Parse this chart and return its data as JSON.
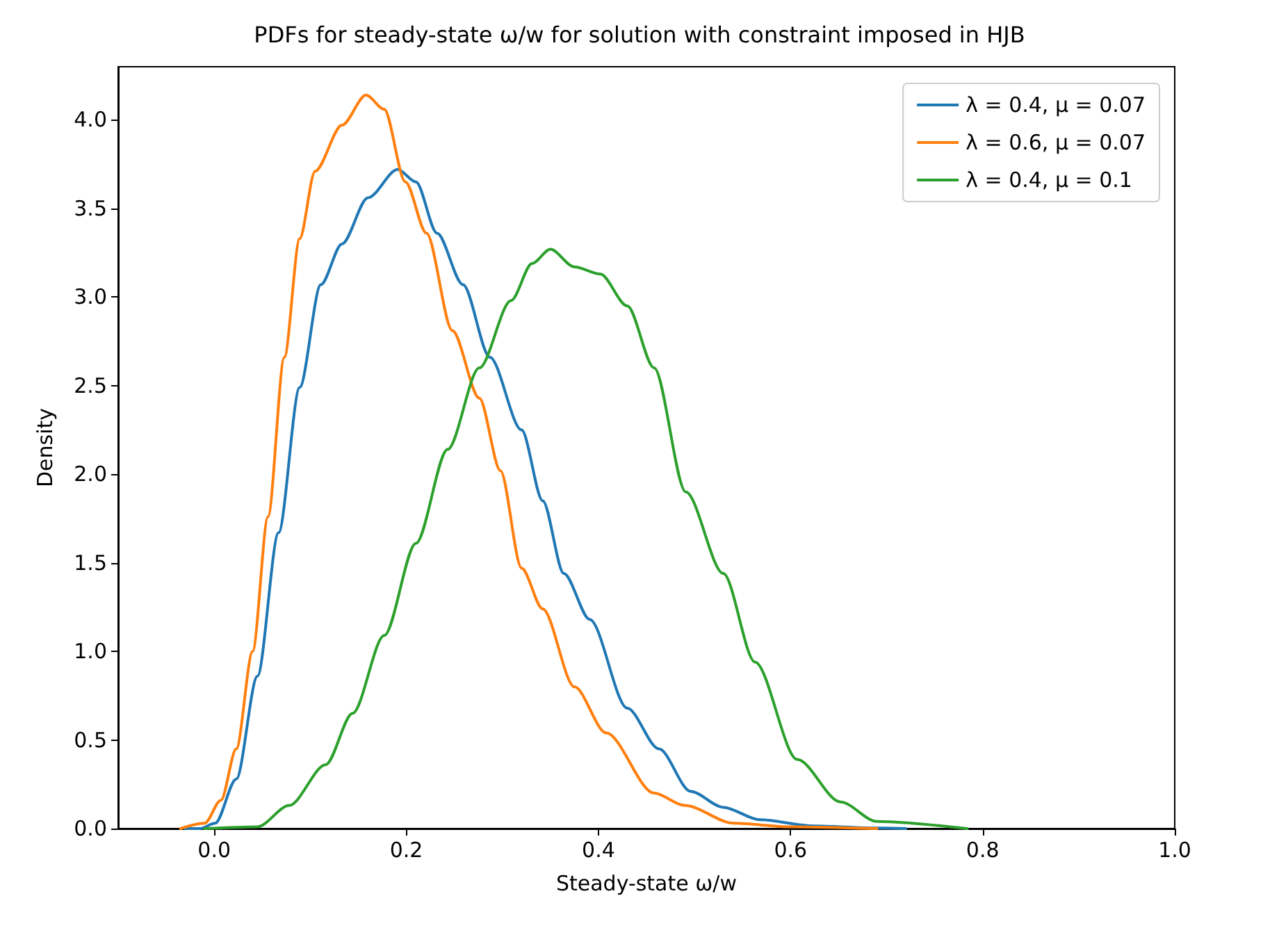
{
  "chart_data": {
    "type": "line",
    "title": "PDFs for steady-state ω/w for solution with constraint imposed in HJB",
    "xlabel": "Steady-state ω/w",
    "ylabel": "Density",
    "xlim": [
      -0.1,
      1.0
    ],
    "ylim": [
      0,
      4.3
    ],
    "xticks": [
      {
        "value": 0,
        "label": "0.0"
      },
      {
        "value": 0.2,
        "label": "0.2"
      },
      {
        "value": 0.4,
        "label": "0.4"
      },
      {
        "value": 0.6,
        "label": "0.6"
      },
      {
        "value": 0.8,
        "label": "0.8"
      },
      {
        "value": 1.0,
        "label": "1.0"
      }
    ],
    "yticks": [
      {
        "value": 0,
        "label": "0.0"
      },
      {
        "value": 0.5,
        "label": "0.5"
      },
      {
        "value": 1.0,
        "label": "1.0"
      },
      {
        "value": 1.5,
        "label": "1.5"
      },
      {
        "value": 2.0,
        "label": "2.0"
      },
      {
        "value": 2.5,
        "label": "2.5"
      },
      {
        "value": 3.0,
        "label": "3.0"
      },
      {
        "value": 3.5,
        "label": "3.5"
      },
      {
        "value": 4.0,
        "label": "4.0"
      }
    ],
    "grid": false,
    "legend": "top right",
    "marker": "none",
    "line_style": "solid",
    "series": [
      {
        "name": "λ = 0.4, μ = 0.07",
        "color": "#1f77b4",
        "x": [
          -0.03,
          -0.015,
          0.001,
          0.023,
          0.045,
          0.067,
          0.089,
          0.111,
          0.133,
          0.16,
          0.191,
          0.21,
          0.232,
          0.259,
          0.287,
          0.32,
          0.342,
          0.364,
          0.391,
          0.43,
          0.463,
          0.496,
          0.53,
          0.568,
          0.624,
          0.69,
          0.72
        ],
        "values": [
          0,
          0,
          0.03,
          0.28,
          0.86,
          1.67,
          2.49,
          3.07,
          3.3,
          3.56,
          3.72,
          3.65,
          3.36,
          3.07,
          2.66,
          2.25,
          1.85,
          1.44,
          1.18,
          0.68,
          0.45,
          0.21,
          0.12,
          0.05,
          0.015,
          0.003,
          0
        ]
      },
      {
        "name": "λ = 0.6, μ = 0.07",
        "color": "#ff7f0e",
        "x": [
          -0.035,
          -0.01,
          0.007,
          0.023,
          0.04,
          0.056,
          0.073,
          0.089,
          0.105,
          0.133,
          0.158,
          0.177,
          0.199,
          0.221,
          0.248,
          0.276,
          0.298,
          0.32,
          0.342,
          0.375,
          0.408,
          0.458,
          0.49,
          0.541,
          0.6,
          0.69
        ],
        "values": [
          0,
          0.03,
          0.16,
          0.45,
          1.0,
          1.76,
          2.66,
          3.33,
          3.71,
          3.97,
          4.14,
          4.06,
          3.65,
          3.36,
          2.81,
          2.43,
          2.02,
          1.47,
          1.24,
          0.8,
          0.54,
          0.2,
          0.13,
          0.03,
          0.01,
          0
        ]
      },
      {
        "name": "λ = 0.4, μ = 0.1",
        "color": "#2ca02c",
        "x": [
          -0.01,
          0.045,
          0.078,
          0.116,
          0.144,
          0.177,
          0.21,
          0.243,
          0.276,
          0.309,
          0.331,
          0.35,
          0.375,
          0.402,
          0.43,
          0.458,
          0.491,
          0.53,
          0.563,
          0.607,
          0.652,
          0.69,
          0.784
        ],
        "values": [
          0,
          0.01,
          0.13,
          0.36,
          0.65,
          1.09,
          1.61,
          2.14,
          2.6,
          2.98,
          3.19,
          3.27,
          3.17,
          3.13,
          2.95,
          2.6,
          1.9,
          1.44,
          0.94,
          0.39,
          0.15,
          0.04,
          0
        ]
      }
    ]
  }
}
